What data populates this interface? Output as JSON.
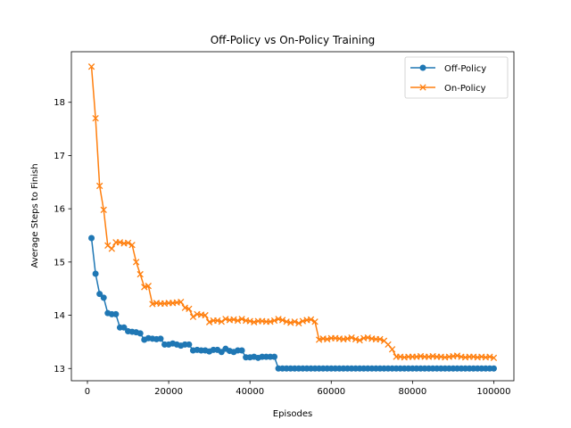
{
  "chart_data": {
    "type": "line",
    "title": "Off-Policy vs On-Policy Training",
    "xlabel": "Episodes",
    "ylabel": "Average Steps to Finish",
    "xlim": [
      -3950,
      104950
    ],
    "ylim": [
      12.77,
      18.95
    ],
    "xticks": [
      0,
      20000,
      40000,
      60000,
      80000,
      100000
    ],
    "yticks": [
      13,
      14,
      15,
      16,
      17,
      18
    ],
    "grid": false,
    "legend_position": "top-right",
    "series": [
      {
        "name": "Off-Policy",
        "color": "#1f77b4",
        "marker": "circle",
        "x": [
          1000,
          2000,
          3000,
          4000,
          5000,
          6000,
          7000,
          8000,
          9000,
          10000,
          11000,
          12000,
          13000,
          14000,
          15000,
          16000,
          17000,
          18000,
          19000,
          20000,
          21000,
          22000,
          23000,
          24000,
          25000,
          26000,
          27000,
          28000,
          29000,
          30000,
          31000,
          32000,
          33000,
          34000,
          35000,
          36000,
          37000,
          38000,
          39000,
          40000,
          41000,
          42000,
          43000,
          44000,
          45000,
          46000,
          47000,
          48000,
          49000,
          50000,
          51000,
          52000,
          53000,
          54000,
          55000,
          56000,
          57000,
          58000,
          59000,
          60000,
          61000,
          62000,
          63000,
          64000,
          65000,
          66000,
          67000,
          68000,
          69000,
          70000,
          71000,
          72000,
          73000,
          74000,
          75000,
          76000,
          77000,
          78000,
          79000,
          80000,
          81000,
          82000,
          83000,
          84000,
          85000,
          86000,
          87000,
          88000,
          89000,
          90000,
          91000,
          92000,
          93000,
          94000,
          95000,
          96000,
          97000,
          98000,
          99000,
          100000
        ],
        "y": [
          15.45,
          14.78,
          14.4,
          14.33,
          14.04,
          14.02,
          14.02,
          13.77,
          13.77,
          13.7,
          13.69,
          13.68,
          13.66,
          13.54,
          13.57,
          13.56,
          13.55,
          13.56,
          13.45,
          13.45,
          13.47,
          13.45,
          13.43,
          13.45,
          13.45,
          13.34,
          13.35,
          13.34,
          13.34,
          13.32,
          13.35,
          13.35,
          13.31,
          13.37,
          13.33,
          13.31,
          13.34,
          13.34,
          13.21,
          13.21,
          13.22,
          13.2,
          13.22,
          13.22,
          13.22,
          13.22,
          13.0,
          13.0,
          13.0,
          13.0,
          13.0,
          13.0,
          13.0,
          13.0,
          13.0,
          13.0,
          13.0,
          13.0,
          13.0,
          13.0,
          13.0,
          13.0,
          13.0,
          13.0,
          13.0,
          13.0,
          13.0,
          13.0,
          13.0,
          13.0,
          13.0,
          13.0,
          13.0,
          13.0,
          13.0,
          13.0,
          13.0,
          13.0,
          13.0,
          13.0,
          13.0,
          13.0,
          13.0,
          13.0,
          13.0,
          13.0,
          13.0,
          13.0,
          13.0,
          13.0,
          13.0,
          13.0,
          13.0,
          13.0,
          13.0,
          13.0,
          13.0,
          13.0,
          13.0,
          13.0
        ]
      },
      {
        "name": "On-Policy",
        "color": "#ff7f0e",
        "marker": "x",
        "x": [
          1000,
          2000,
          3000,
          4000,
          5000,
          6000,
          7000,
          8000,
          9000,
          10000,
          11000,
          12000,
          13000,
          14000,
          15000,
          16000,
          17000,
          18000,
          19000,
          20000,
          21000,
          22000,
          23000,
          24000,
          25000,
          26000,
          27000,
          28000,
          29000,
          30000,
          31000,
          32000,
          33000,
          34000,
          35000,
          36000,
          37000,
          38000,
          39000,
          40000,
          41000,
          42000,
          43000,
          44000,
          45000,
          46000,
          47000,
          48000,
          49000,
          50000,
          51000,
          52000,
          53000,
          54000,
          55000,
          56000,
          57000,
          58000,
          59000,
          60000,
          61000,
          62000,
          63000,
          64000,
          65000,
          66000,
          67000,
          68000,
          69000,
          70000,
          71000,
          72000,
          73000,
          74000,
          75000,
          76000,
          77000,
          78000,
          79000,
          80000,
          81000,
          82000,
          83000,
          84000,
          85000,
          86000,
          87000,
          88000,
          89000,
          90000,
          91000,
          92000,
          93000,
          94000,
          95000,
          96000,
          97000,
          98000,
          99000,
          100000
        ],
        "y": [
          18.67,
          17.7,
          16.43,
          15.98,
          15.31,
          15.25,
          15.37,
          15.37,
          15.35,
          15.36,
          15.32,
          15.0,
          14.77,
          14.53,
          14.55,
          14.21,
          14.23,
          14.22,
          14.22,
          14.23,
          14.23,
          14.24,
          14.25,
          14.14,
          14.12,
          13.97,
          14.02,
          14.01,
          14.0,
          13.87,
          13.9,
          13.9,
          13.88,
          13.93,
          13.91,
          13.92,
          13.9,
          13.93,
          13.9,
          13.89,
          13.87,
          13.89,
          13.89,
          13.88,
          13.88,
          13.9,
          13.93,
          13.91,
          13.88,
          13.86,
          13.88,
          13.85,
          13.89,
          13.91,
          13.92,
          13.88,
          13.54,
          13.56,
          13.55,
          13.57,
          13.57,
          13.56,
          13.55,
          13.56,
          13.58,
          13.55,
          13.53,
          13.57,
          13.58,
          13.56,
          13.55,
          13.55,
          13.52,
          13.45,
          13.36,
          13.22,
          13.22,
          13.21,
          13.22,
          13.22,
          13.22,
          13.23,
          13.22,
          13.22,
          13.23,
          13.22,
          13.22,
          13.21,
          13.22,
          13.23,
          13.24,
          13.22,
          13.21,
          13.22,
          13.22,
          13.21,
          13.22,
          13.21,
          13.22,
          13.2
        ]
      }
    ]
  }
}
